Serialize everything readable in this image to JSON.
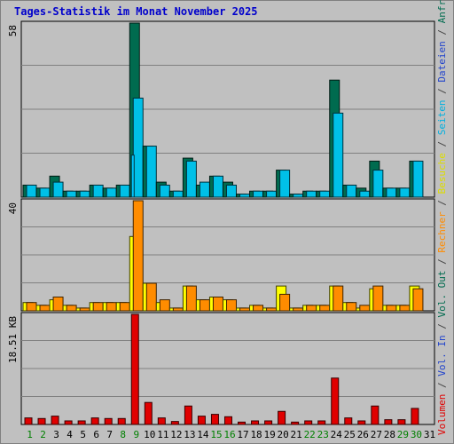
{
  "title": "Tages-Statistik im Monat November 2025",
  "chart_data": {
    "type": "bar",
    "categories": [
      "1",
      "2",
      "3",
      "4",
      "5",
      "6",
      "7",
      "8",
      "9",
      "10",
      "11",
      "12",
      "13",
      "14",
      "15",
      "16",
      "17",
      "18",
      "19",
      "20",
      "21",
      "22",
      "23",
      "24",
      "25",
      "26",
      "27",
      "28",
      "29",
      "30",
      "31"
    ],
    "weekend_days": [
      "1",
      "2",
      "8",
      "9",
      "15",
      "16",
      "22",
      "23",
      "29",
      "30"
    ],
    "panels": [
      {
        "id": "hits",
        "ymax": 58,
        "ymax_label": "58",
        "series": [
          {
            "name": "Anfragen",
            "color": "#006b4f",
            "values": [
              4,
              3,
              7,
              2,
              2,
              4,
              3,
              4,
              58,
              17,
              5,
              2,
              13,
              4,
              7,
              5,
              1,
              2,
              2,
              9,
              1,
              2,
              2,
              39,
              4,
              3,
              12,
              3,
              3,
              12,
              0
            ]
          },
          {
            "name": "Dateien",
            "color": "#00c0e8",
            "values": [
              4,
              3,
              5,
              2,
              2,
              4,
              3,
              4,
              33,
              17,
              4,
              2,
              12,
              5,
              7,
              4,
              1,
              2,
              2,
              9,
              1,
              2,
              2,
              28,
              4,
              2,
              9,
              3,
              3,
              12,
              0
            ]
          },
          {
            "name": "Seiten",
            "color": "#00c8ff",
            "values": [
              0,
              0,
              0,
              0,
              0,
              0,
              0,
              0,
              14,
              0,
              0,
              0,
              0,
              0,
              0,
              0,
              0,
              0,
              0,
              0,
              0,
              0,
              0,
              0,
              0,
              0,
              0,
              0,
              0,
              0,
              0
            ]
          }
        ]
      },
      {
        "id": "visits",
        "ymax": 40,
        "ymax_label": "40",
        "series": [
          {
            "name": "Besuche",
            "color": "#ffff00",
            "values": [
              3,
              2,
              4,
              2,
              1,
              3,
              3,
              3,
              27,
              10,
              3,
              1,
              9,
              4,
              5,
              4,
              1,
              2,
              1,
              9,
              1,
              2,
              2,
              9,
              3,
              1,
              8,
              2,
              2,
              9,
              0
            ]
          },
          {
            "name": "Rechner",
            "color": "#ff8c00",
            "values": [
              3,
              2,
              5,
              2,
              1,
              3,
              3,
              3,
              40,
              10,
              4,
              1,
              9,
              4,
              5,
              4,
              1,
              2,
              1,
              6,
              1,
              2,
              2,
              9,
              3,
              2,
              9,
              2,
              2,
              8,
              0
            ]
          }
        ]
      },
      {
        "id": "volume",
        "ymax": 18.51,
        "ymax_label": "18.51 KB",
        "series": [
          {
            "name": "Volumen",
            "color": "#e00000",
            "values": [
              1.1,
              1.0,
              1.4,
              0.6,
              0.6,
              1.1,
              1.0,
              1.0,
              18.51,
              3.7,
              1.1,
              0.5,
              3.1,
              1.4,
              1.7,
              1.3,
              0.4,
              0.6,
              0.6,
              2.2,
              0.4,
              0.6,
              0.6,
              7.8,
              1.1,
              0.6,
              3.1,
              0.8,
              0.8,
              2.7,
              0
            ]
          }
        ]
      }
    ],
    "right_labels": [
      {
        "text": "Volumen",
        "color": "#e00000"
      },
      {
        "text": " / ",
        "color": "#444444"
      },
      {
        "text": "Vol. In",
        "color": "#2244cc"
      },
      {
        "text": " / ",
        "color": "#444444"
      },
      {
        "text": "Vol. Out",
        "color": "#006b4f"
      },
      {
        "text": " / ",
        "color": "#444444"
      },
      {
        "text": "Rechner",
        "color": "#ff8c00"
      },
      {
        "text": " / ",
        "color": "#444444"
      },
      {
        "text": "Besuche",
        "color": "#dddd00"
      },
      {
        "text": " / ",
        "color": "#444444"
      },
      {
        "text": "Seiten",
        "color": "#00b0e0"
      },
      {
        "text": " / ",
        "color": "#444444"
      },
      {
        "text": "Dateien",
        "color": "#2244cc"
      },
      {
        "text": " / ",
        "color": "#444444"
      },
      {
        "text": "Anfragen",
        "color": "#006b4f"
      }
    ],
    "grid": true,
    "colors": {
      "background": "#c0c0c0",
      "grid": "#808080",
      "weekday_label": "#000000",
      "weekend_label": "#008000"
    }
  }
}
